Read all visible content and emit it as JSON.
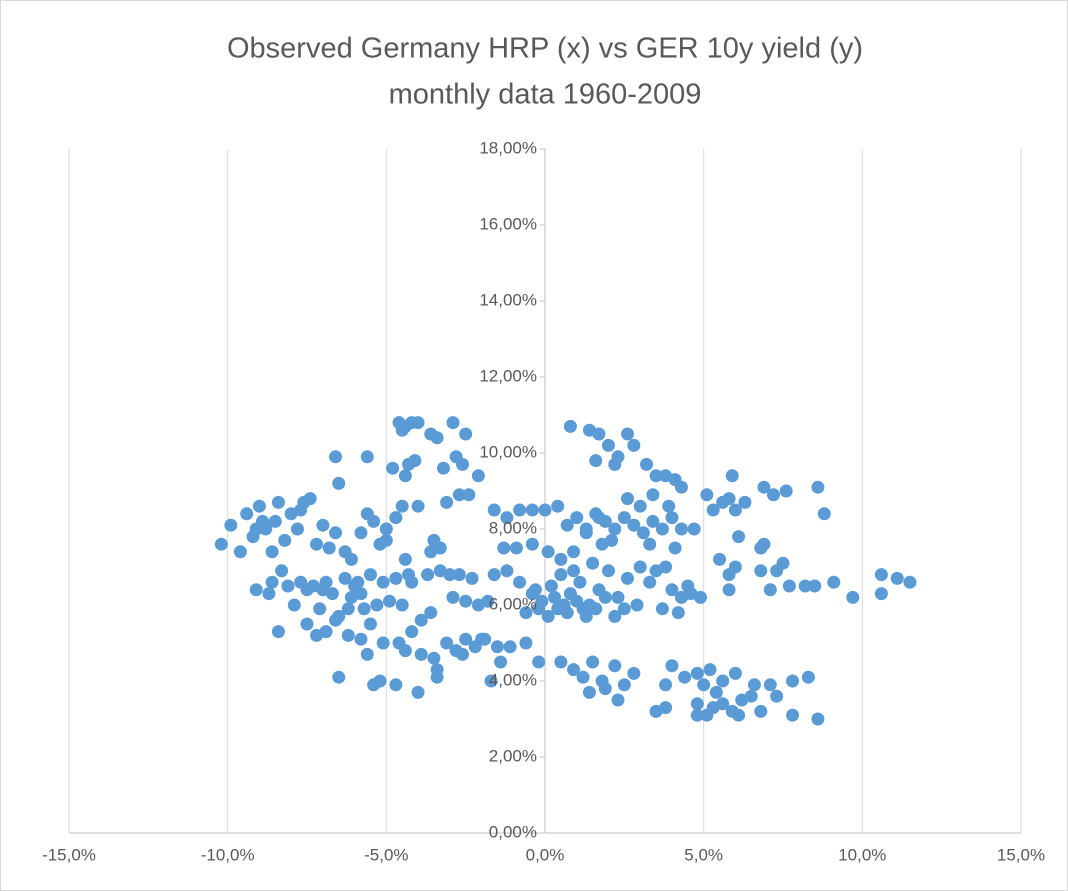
{
  "chart_data": {
    "type": "scatter",
    "title": "Observed Germany HRP (x) vs GER 10y yield (y)",
    "subtitle": "monthly data 1960-2009",
    "color": "#5b9bd5",
    "xlim": [
      -15,
      15
    ],
    "ylim": [
      0,
      18
    ],
    "xticks": [
      {
        "value": -15,
        "label": "-15,0%"
      },
      {
        "value": -10,
        "label": "-10,0%"
      },
      {
        "value": -5,
        "label": "-5,0%"
      },
      {
        "value": 0,
        "label": "0,0%"
      },
      {
        "value": 5,
        "label": "5,0%"
      },
      {
        "value": 10,
        "label": "10,0%"
      },
      {
        "value": 15,
        "label": "15,0%"
      }
    ],
    "yticks": [
      {
        "value": 0,
        "label": "0,00%"
      },
      {
        "value": 2,
        "label": "2,00%"
      },
      {
        "value": 4,
        "label": "4,00%"
      },
      {
        "value": 6,
        "label": "6,00%"
      },
      {
        "value": 8,
        "label": "8,00%"
      },
      {
        "value": 10,
        "label": "10,00%"
      },
      {
        "value": 12,
        "label": "12,00%"
      },
      {
        "value": 14,
        "label": "14,00%"
      },
      {
        "value": 16,
        "label": "16,00%"
      },
      {
        "value": 18,
        "label": "18,00%"
      }
    ],
    "grid": true,
    "x": [
      -4.6,
      -4.4,
      -4.2,
      -4.0,
      -3.6,
      -3.4,
      -2.9,
      -2.5,
      -4.5,
      -6.6,
      -5.6,
      -4.8,
      -4.3,
      -4.1,
      -2.8,
      -2.6,
      -2.1,
      -6.5,
      -3.2,
      -4.4,
      -10.2,
      -9.9,
      -9.6,
      -9.4,
      -9.2,
      -9.0,
      -8.8,
      -8.6,
      -8.4,
      -8.2,
      -8.0,
      -7.8,
      -7.6,
      -7.4,
      -7.2,
      -7.0,
      -6.8,
      -6.6,
      -6.3,
      -6.1,
      -5.8,
      -5.6,
      -5.4,
      -5.2,
      -5.0,
      -4.7,
      -4.5,
      -4.0,
      -3.6,
      -3.3,
      -3.1,
      -2.7,
      -2.4,
      -3.5,
      -8.9,
      -8.5,
      -7.7,
      -5.0,
      -4.3,
      -9.1,
      -9.1,
      -8.7,
      -8.3,
      -8.1,
      -7.9,
      -7.5,
      -7.3,
      -7.1,
      -6.9,
      -6.7,
      -6.5,
      -6.3,
      -6.1,
      -5.9,
      -5.7,
      -5.5,
      -5.3,
      -5.1,
      -4.9,
      -4.7,
      -4.4,
      -4.2,
      -3.9,
      -3.7,
      -3.3,
      -3.0,
      -2.7,
      -2.5,
      -2.3,
      -2.1,
      -1.8,
      -7.7,
      -6.2,
      -5.8,
      -4.5,
      -3.6,
      -8.6,
      -7.0,
      -6.0,
      -2.9,
      -8.4,
      -7.5,
      -7.2,
      -6.9,
      -6.6,
      -6.2,
      -5.8,
      -5.5,
      -5.1,
      -4.6,
      -4.2,
      -3.9,
      -3.5,
      -3.1,
      -2.8,
      -2.5,
      -2.2,
      -1.9,
      -1.5,
      -1.1,
      -0.6,
      -3.4,
      -1.4,
      -6.5,
      -5.4,
      -5.2,
      -4.7,
      -4.0,
      -3.4,
      -1.7,
      -5.6,
      -4.4,
      -2.6,
      -2.0,
      -1.6,
      -1.2,
      -0.8,
      -0.4,
      0.0,
      0.4,
      -1.3,
      -0.9,
      -0.4,
      0.1,
      0.5,
      0.9,
      1.3,
      1.7,
      -1.6,
      -1.2,
      -0.8,
      -0.4,
      -0.1,
      0.2,
      0.5,
      0.8,
      1.1,
      1.4,
      1.7,
      2.0,
      2.3,
      2.6,
      2.9,
      -0.6,
      -0.2,
      0.1,
      0.4,
      0.7,
      1.0,
      1.3,
      1.6,
      1.9,
      2.2,
      2.5,
      0.9,
      1.5,
      0.3,
      1.2,
      -0.3,
      0.6,
      0.8,
      1.4,
      1.7,
      2.0,
      2.3,
      2.6,
      1.6,
      2.2,
      3.2,
      3.5,
      3.8,
      4.1,
      4.3,
      2.8,
      2.6,
      0.7,
      1.0,
      1.3,
      1.6,
      1.9,
      2.2,
      2.5,
      2.8,
      3.1,
      3.4,
      3.7,
      4.0,
      4.3,
      4.7,
      3.0,
      3.4,
      3.9,
      5.1,
      5.3,
      5.6,
      5.8,
      6.0,
      6.3,
      6.9,
      7.2,
      7.6,
      8.6,
      8.8,
      6.1,
      5.9,
      3.3,
      2.1,
      1.8,
      4.1,
      3.0,
      3.5,
      3.8,
      3.3,
      4.0,
      4.3,
      4.6,
      4.9,
      4.2,
      3.7,
      5.5,
      5.8,
      6.0,
      6.8,
      6.9,
      7.1,
      7.3,
      7.5,
      7.7,
      8.2,
      8.5,
      9.1,
      9.7,
      10.6,
      10.6,
      11.1,
      11.5,
      5.8,
      6.8,
      4.5,
      -0.2,
      0.5,
      0.9,
      1.2,
      1.5,
      1.8,
      2.2,
      2.5,
      2.8,
      1.4,
      1.9,
      2.3,
      3.8,
      4.0,
      4.4,
      4.8,
      5.2,
      5.6,
      6.0,
      3.5,
      3.8,
      4.8,
      5.1,
      5.3,
      5.6,
      5.9,
      6.1,
      6.5,
      6.8,
      7.1,
      7.3,
      7.8,
      7.8,
      8.3,
      8.6,
      4.8,
      5.4,
      6.2,
      6.6,
      5.0
    ],
    "values": [
      10.8,
      10.7,
      10.8,
      10.8,
      10.5,
      10.4,
      10.8,
      10.5,
      10.6,
      9.9,
      9.9,
      9.6,
      9.7,
      9.8,
      9.9,
      9.7,
      9.4,
      9.2,
      9.6,
      9.4,
      7.6,
      8.1,
      7.4,
      8.4,
      7.8,
      8.6,
      8.0,
      7.4,
      8.7,
      7.7,
      8.4,
      8.0,
      8.7,
      8.8,
      7.6,
      8.1,
      7.5,
      7.9,
      7.4,
      7.2,
      7.9,
      8.4,
      8.2,
      7.6,
      7.7,
      8.3,
      8.6,
      8.6,
      7.4,
      7.5,
      8.7,
      8.9,
      8.9,
      7.7,
      8.2,
      8.2,
      8.5,
      8.0,
      6.8,
      8.0,
      6.4,
      6.3,
      6.9,
      6.5,
      6.0,
      6.4,
      6.5,
      5.9,
      6.6,
      6.3,
      5.7,
      6.7,
      6.2,
      6.6,
      5.9,
      6.8,
      6.0,
      6.6,
      6.1,
      6.7,
      7.2,
      6.6,
      5.6,
      6.8,
      6.9,
      6.8,
      6.8,
      6.1,
      6.7,
      6.0,
      6.1,
      6.6,
      5.9,
      6.3,
      6.0,
      5.8,
      6.6,
      6.4,
      6.5,
      6.2,
      5.3,
      5.5,
      5.2,
      5.3,
      5.6,
      5.2,
      5.1,
      5.5,
      5.0,
      5.0,
      5.3,
      4.7,
      4.6,
      5.0,
      4.8,
      5.1,
      4.9,
      5.1,
      4.9,
      4.9,
      5.0,
      4.3,
      4.5,
      4.1,
      3.9,
      4.0,
      3.9,
      3.7,
      4.1,
      4.0,
      4.7,
      4.8,
      4.7,
      5.1,
      8.5,
      8.3,
      8.5,
      8.5,
      8.5,
      8.6,
      7.5,
      7.5,
      7.6,
      7.4,
      7.2,
      7.4,
      7.9,
      8.3,
      6.8,
      6.9,
      6.6,
      6.3,
      6.1,
      6.5,
      6.8,
      6.3,
      6.6,
      6.0,
      6.4,
      6.9,
      6.2,
      6.7,
      6.0,
      5.8,
      5.9,
      5.7,
      5.9,
      5.8,
      6.1,
      5.7,
      5.9,
      6.2,
      5.7,
      5.9,
      6.9,
      7.1,
      6.2,
      5.9,
      6.4,
      6.0,
      10.7,
      10.6,
      10.5,
      10.2,
      9.9,
      10.5,
      9.8,
      9.7,
      9.7,
      9.4,
      9.4,
      9.3,
      9.1,
      10.2,
      8.8,
      8.1,
      8.3,
      8.0,
      8.4,
      8.2,
      8.0,
      8.3,
      8.1,
      7.9,
      8.2,
      8.0,
      8.3,
      8.0,
      8.0,
      8.6,
      8.9,
      8.6,
      8.9,
      8.5,
      8.7,
      8.8,
      8.5,
      8.7,
      9.1,
      8.9,
      9.0,
      9.1,
      8.4,
      7.8,
      9.4,
      7.6,
      7.7,
      7.6,
      7.5,
      7.0,
      6.9,
      7.0,
      6.6,
      6.4,
      6.2,
      6.3,
      6.2,
      5.8,
      5.9,
      7.2,
      6.8,
      7.0,
      6.9,
      7.6,
      6.4,
      6.9,
      7.1,
      6.5,
      6.5,
      6.5,
      6.6,
      6.2,
      6.8,
      6.3,
      6.7,
      6.6,
      6.4,
      7.5,
      6.5,
      4.5,
      4.5,
      4.3,
      4.1,
      4.5,
      4.0,
      4.4,
      3.9,
      4.2,
      3.7,
      3.8,
      3.5,
      3.9,
      4.4,
      4.1,
      4.2,
      4.3,
      4.0,
      4.2,
      3.2,
      3.3,
      3.4,
      3.1,
      3.3,
      3.4,
      3.2,
      3.1,
      3.6,
      3.2,
      3.9,
      3.6,
      3.1,
      4.0,
      4.1,
      3.0,
      3.1,
      3.7,
      3.5,
      3.9,
      3.9
    ]
  }
}
